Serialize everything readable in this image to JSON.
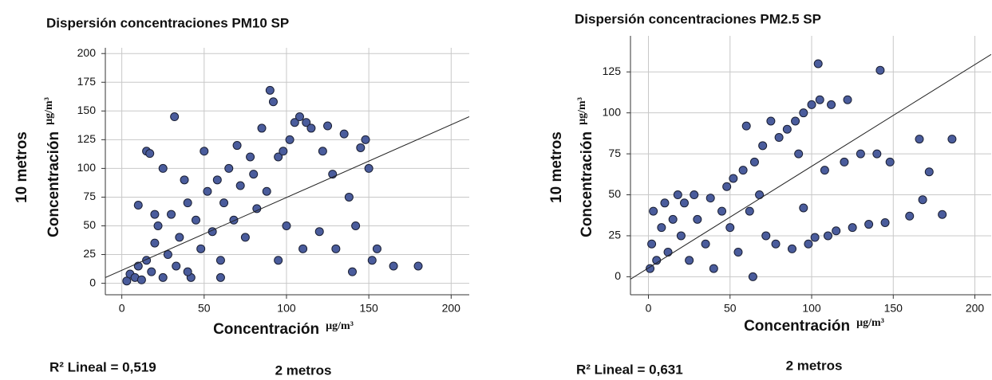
{
  "chart_data": [
    {
      "type": "scatter",
      "title": "Dispersión concentraciones PM10 SP",
      "xlabel": "Concentración",
      "xunit": "µg/m³",
      "ylabel": "Concentración",
      "yunit": "µg/m³",
      "y_outer_label": "10 metros",
      "x_outer_label": "2 metros",
      "annotation": "R² Lineal = 0,519",
      "xlim": [
        -10,
        211
      ],
      "ylim": [
        -10,
        205
      ],
      "xticks": [
        0,
        50,
        100,
        150,
        200
      ],
      "yticks": [
        0,
        25,
        50,
        75,
        100,
        125,
        150,
        175,
        200
      ],
      "grid": true,
      "color": "#4a5c9c",
      "x": [
        3,
        5,
        8,
        10,
        12,
        15,
        15,
        17,
        18,
        20,
        22,
        25,
        25,
        28,
        30,
        32,
        33,
        35,
        38,
        40,
        42,
        45,
        48,
        50,
        52,
        55,
        58,
        60,
        62,
        65,
        68,
        70,
        72,
        75,
        78,
        80,
        82,
        85,
        88,
        90,
        92,
        95,
        95,
        98,
        100,
        102,
        105,
        108,
        110,
        112,
        115,
        120,
        122,
        125,
        128,
        130,
        135,
        138,
        140,
        142,
        145,
        148,
        150,
        152,
        155,
        165,
        180,
        40,
        60,
        20,
        10
      ],
      "y": [
        2,
        8,
        5,
        15,
        3,
        20,
        115,
        113,
        10,
        35,
        50,
        5,
        100,
        25,
        60,
        145,
        15,
        40,
        90,
        70,
        5,
        55,
        30,
        115,
        80,
        45,
        90,
        20,
        70,
        100,
        55,
        120,
        85,
        40,
        110,
        95,
        65,
        135,
        80,
        168,
        158,
        110,
        20,
        115,
        50,
        125,
        140,
        145,
        30,
        140,
        135,
        45,
        115,
        137,
        95,
        30,
        130,
        75,
        10,
        50,
        118,
        125,
        100,
        20,
        30,
        15,
        15,
        10,
        5,
        60,
        68
      ],
      "fit_line": {
        "x": [
          -10,
          211
        ],
        "y": [
          5,
          145
        ]
      }
    },
    {
      "type": "scatter",
      "title": "Dispersión concentraciones PM2.5 SP",
      "xlabel": "Concentración",
      "xunit": "µg/m³",
      "ylabel": "Concentración",
      "yunit": "µg/m³",
      "y_outer_label": "10 metros",
      "x_outer_label": "2 metros",
      "annotation": "R² Lineal = 0,631",
      "xlim": [
        -11,
        210
      ],
      "ylim": [
        -11,
        147
      ],
      "xticks": [
        0,
        50,
        100,
        150,
        200
      ],
      "yticks": [
        0,
        25,
        50,
        75,
        100,
        125
      ],
      "grid": true,
      "color": "#4a5c9c",
      "x": [
        1,
        2,
        3,
        5,
        8,
        10,
        12,
        15,
        18,
        20,
        22,
        25,
        28,
        30,
        35,
        38,
        40,
        45,
        48,
        50,
        52,
        55,
        58,
        60,
        62,
        64,
        65,
        68,
        70,
        72,
        75,
        78,
        80,
        85,
        88,
        90,
        92,
        95,
        95,
        98,
        100,
        102,
        104,
        105,
        108,
        110,
        112,
        115,
        120,
        122,
        125,
        130,
        135,
        140,
        142,
        145,
        148,
        160,
        166,
        168,
        172,
        180,
        186
      ],
      "y": [
        5,
        20,
        40,
        10,
        30,
        45,
        15,
        35,
        50,
        25,
        45,
        10,
        50,
        35,
        20,
        48,
        5,
        40,
        55,
        30,
        60,
        15,
        65,
        92,
        40,
        0,
        70,
        50,
        80,
        25,
        95,
        20,
        85,
        90,
        17,
        95,
        75,
        100,
        42,
        20,
        105,
        24,
        130,
        108,
        65,
        25,
        105,
        28,
        70,
        108,
        30,
        75,
        32,
        75,
        126,
        33,
        70,
        37,
        84,
        47,
        64,
        38,
        84
      ],
      "fit_line": {
        "x": [
          -11,
          210
        ],
        "y": [
          -1.5,
          135.7
        ]
      }
    }
  ]
}
